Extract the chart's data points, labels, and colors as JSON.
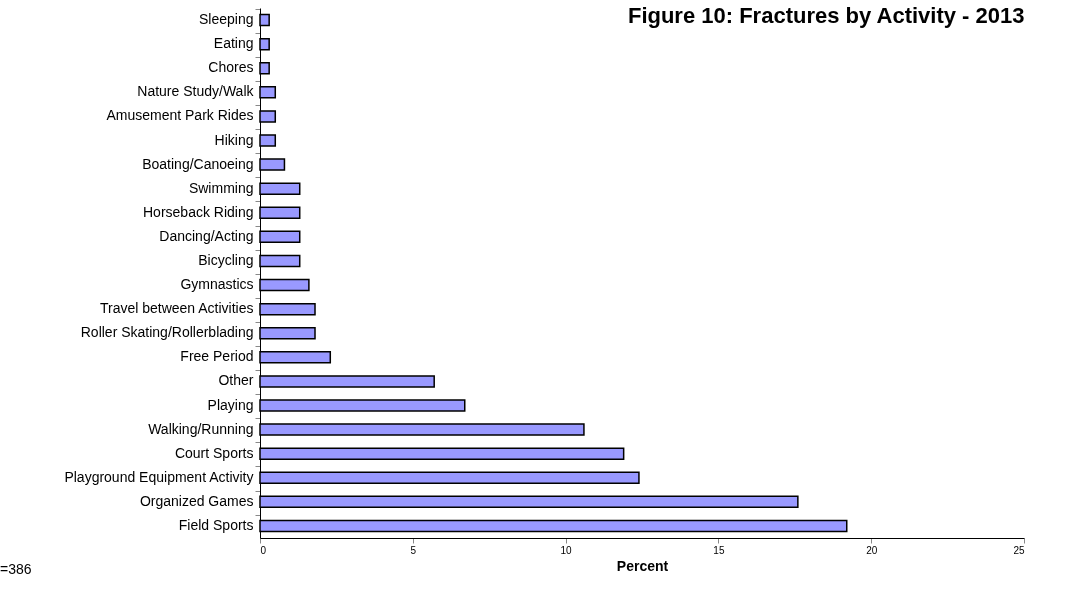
{
  "chart_data": {
    "type": "bar",
    "orientation": "horizontal",
    "title": "Figure 10: Fractures by Activity - 2013",
    "xlabel": "Percent",
    "categories": [
      "Sleeping",
      "Eating",
      "Chores",
      "Nature Study/Walk",
      "Amusement Park Rides",
      "Hiking",
      "Boating/Canoeing",
      "Swimming",
      "Horseback Riding",
      "Dancing/Acting",
      "Bicycling",
      "Gymnastics",
      "Travel between Activities",
      "Roller Skating/Rollerblading",
      "Free Period",
      "Other",
      "Playing",
      "Walking/Running",
      "Court Sports",
      "Playground Equipment Activity",
      "Organized Games",
      "Field Sports"
    ],
    "values": [
      0.3,
      0.3,
      0.3,
      0.5,
      0.5,
      0.5,
      0.8,
      1.3,
      1.3,
      1.3,
      1.3,
      1.6,
      1.8,
      1.8,
      2.3,
      5.7,
      6.7,
      10.6,
      11.9,
      12.4,
      17.6,
      19.2
    ],
    "color": "#9999ff",
    "xlim": [
      0,
      25
    ],
    "xticks": [
      0,
      5,
      10,
      15,
      20,
      25
    ],
    "grid": false,
    "annotations": [
      "=386"
    ]
  }
}
